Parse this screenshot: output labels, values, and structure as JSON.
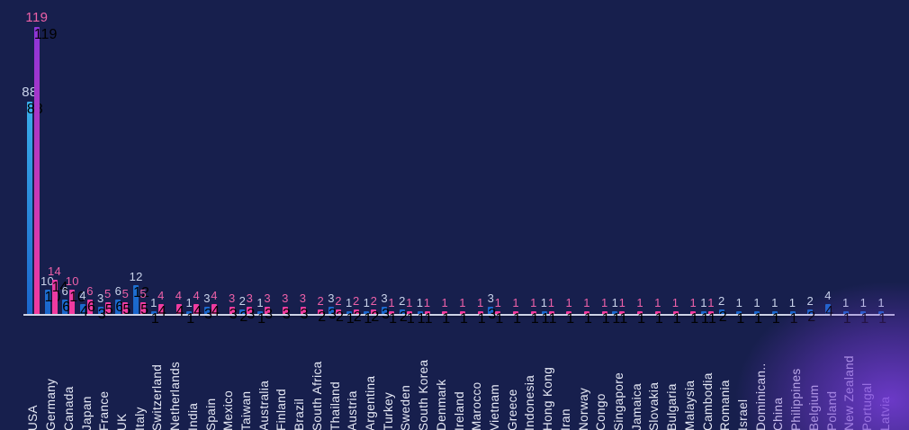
{
  "chart_data": {
    "type": "bar",
    "title": "",
    "xlabel": "",
    "ylabel": "",
    "ylim": [
      0,
      119
    ],
    "grid": false,
    "legend": false,
    "background_color": "#171f4d",
    "axis_line_color": "#ccd2e6",
    "tick_label_color": "#e7eaf6",
    "corner_glow_color": "#7a3edc",
    "categories": [
      "USA",
      "Germany",
      "Canada",
      "Japan",
      "France",
      "UK",
      "Italy",
      "Switzerland",
      "Netherlands",
      "India",
      "Spain",
      "Mexico",
      "Taiwan",
      "Australia",
      "Finland",
      "Brazil",
      "South Africa",
      "Thailand",
      "Austria",
      "Argentina",
      "Turkey",
      "Sweden",
      "South Korea",
      "Denmark",
      "Ireland",
      "Marocco",
      "Vietnam",
      "Greece",
      "Indonesia",
      "Hong Kong",
      "Iran",
      "Norway",
      "Congo",
      "Singapore",
      "Jamaica",
      "Slovakia",
      "Bulgaria",
      "Malaysia",
      "Cambodia",
      "Romania",
      "Israel",
      "Dominican..",
      "China",
      "Philippines",
      "Belgium",
      "Poland",
      "New Zealand",
      "Portugal",
      "Latvia"
    ],
    "series": [
      {
        "name": "blue-series",
        "bar_color_bottom": "#1a66cc",
        "bar_color_top": "#45c8f5",
        "value_label_color": "#c9d3ea",
        "values": [
          88,
          10,
          6,
          4,
          3,
          6,
          12,
          1,
          null,
          1,
          3,
          null,
          2,
          1,
          null,
          null,
          null,
          3,
          1,
          1,
          3,
          2,
          1,
          null,
          null,
          null,
          3,
          null,
          null,
          1,
          null,
          null,
          null,
          1,
          null,
          null,
          null,
          null,
          1,
          2,
          1,
          1,
          1,
          1,
          2,
          4,
          1,
          1,
          1
        ]
      },
      {
        "name": "pink-series",
        "bar_color_bottom": "#f23b9e",
        "bar_color_top": "#8c35d8",
        "value_label_color": "#ee61a8",
        "values": [
          119,
          14,
          10,
          6,
          5,
          5,
          5,
          4,
          4,
          4,
          4,
          3,
          3,
          3,
          3,
          3,
          2,
          2,
          2,
          2,
          1,
          1,
          1,
          1,
          1,
          1,
          1,
          1,
          1,
          1,
          1,
          1,
          1,
          1,
          1,
          1,
          1,
          1,
          1,
          null,
          null,
          null,
          null,
          null,
          null,
          null,
          null,
          null,
          null
        ]
      }
    ]
  }
}
